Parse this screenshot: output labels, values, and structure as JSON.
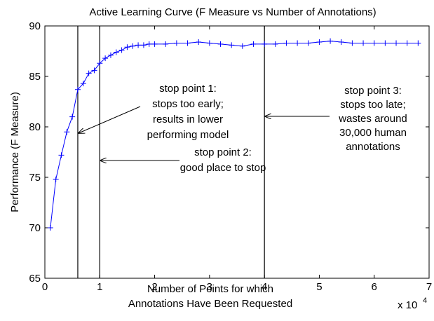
{
  "chart_data": {
    "type": "line",
    "title": "Active Learning Curve (F Measure vs Number of Annotations)",
    "x_label": [
      "Number of Points for which",
      "Annotations Have Been Requested"
    ],
    "y_label": "Performance (F Measure)",
    "x_multiplier": "x 10",
    "x_multiplier_exponent": "4",
    "x": [
      0.1,
      0.2,
      0.3,
      0.4,
      0.5,
      0.6,
      0.7,
      0.8,
      0.9,
      1.0,
      1.1,
      1.2,
      1.3,
      1.4,
      1.5,
      1.6,
      1.7,
      1.8,
      1.9,
      2.0,
      2.2,
      2.4,
      2.6,
      2.8,
      3.0,
      3.2,
      3.4,
      3.6,
      3.8,
      4.0,
      4.2,
      4.4,
      4.6,
      4.8,
      5.0,
      5.2,
      5.4,
      5.6,
      5.8,
      6.0,
      6.2,
      6.4,
      6.6,
      6.8
    ],
    "series": [
      {
        "color": "#0000ff",
        "values": [
          70,
          74.8,
          77.2,
          79.5,
          81,
          83.7,
          84.3,
          85.3,
          85.6,
          86.3,
          86.8,
          87.1,
          87.4,
          87.6,
          87.9,
          88,
          88.1,
          88.1,
          88.2,
          88.2,
          88.2,
          88.3,
          88.3,
          88.4,
          88.3,
          88.2,
          88.1,
          88.0,
          88.2,
          88.2,
          88.2,
          88.3,
          88.3,
          88.3,
          88.4,
          88.5,
          88.4,
          88.3,
          88.3,
          88.3,
          88.3,
          88.3,
          88.3,
          88.3
        ]
      }
    ],
    "xlim": [
      0,
      7
    ],
    "xticks": [
      0,
      1,
      2,
      3,
      4,
      5,
      6,
      7
    ],
    "ylim": [
      65,
      90
    ],
    "yticks": [
      65,
      70,
      75,
      80,
      85,
      90
    ],
    "vertical_lines": [
      0.6,
      1,
      4
    ],
    "annotations": [
      {
        "lines": [
          "stop point 1:",
          "stops too early;",
          "results in lower",
          "performing model"
        ]
      },
      {
        "lines": [
          "stop point 2:",
          "good place to stop"
        ]
      },
      {
        "lines": [
          "stop point 3:",
          "stops too late;",
          "wastes around",
          "30,000 human",
          "annotations"
        ]
      }
    ]
  }
}
